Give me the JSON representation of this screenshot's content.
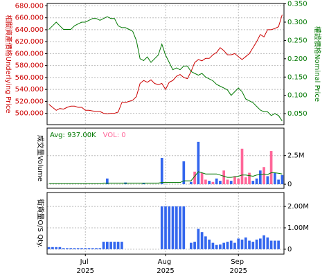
{
  "chart_data": [
    {
      "type": "line",
      "y_label": "相關資產價格Underlying Price",
      "y2_label": "權證價格Nominal Price",
      "ylim": [
        481,
        684
      ],
      "yticks": [
        {
          "value": 500,
          "label": "500.000"
        },
        {
          "value": 520,
          "label": "520.000"
        },
        {
          "value": 540,
          "label": "540.000"
        },
        {
          "value": 560,
          "label": "560.000"
        },
        {
          "value": 580,
          "label": "580.000"
        },
        {
          "value": 600,
          "label": "600.000"
        },
        {
          "value": 620,
          "label": "620.000"
        },
        {
          "value": 640,
          "label": "640.000"
        },
        {
          "value": 660,
          "label": "660.000"
        },
        {
          "value": 680,
          "label": "680.000"
        }
      ],
      "y2lim": [
        0.02,
        0.351
      ],
      "y2ticks": [
        {
          "value": 0.05,
          "label": "0.050"
        },
        {
          "value": 0.1,
          "label": "0.100"
        },
        {
          "value": 0.15,
          "label": "0.150"
        },
        {
          "value": 0.2,
          "label": "0.200"
        },
        {
          "value": 0.25,
          "label": "0.250"
        },
        {
          "value": 0.3,
          "label": "0.300"
        },
        {
          "value": 0.35,
          "label": "0.350"
        }
      ],
      "grid": true,
      "series": [
        {
          "color": "#cc0000",
          "axis": "y",
          "values": [
            515,
            510,
            505,
            508,
            507,
            510,
            512,
            512,
            510,
            510,
            505,
            505,
            504,
            503,
            503,
            500,
            499,
            500,
            500,
            502,
            518,
            518,
            520,
            522,
            528,
            550,
            555,
            552,
            556,
            550,
            548,
            550,
            540,
            552,
            555,
            562,
            565,
            560,
            558,
            570,
            585,
            590,
            588,
            592,
            592,
            598,
            602,
            610,
            605,
            598,
            598,
            600,
            595,
            590,
            595,
            600,
            610,
            620,
            632,
            628,
            640,
            640,
            642,
            645,
            665
          ]
        },
        {
          "color": "#007700",
          "axis": "y2",
          "values": [
            0.28,
            0.29,
            0.3,
            0.29,
            0.28,
            0.28,
            0.28,
            0.29,
            0.295,
            0.3,
            0.3,
            0.305,
            0.31,
            0.31,
            0.305,
            0.31,
            0.315,
            0.31,
            0.31,
            0.29,
            0.285,
            0.285,
            0.28,
            0.275,
            0.25,
            0.2,
            0.195,
            0.205,
            0.19,
            0.2,
            0.21,
            0.24,
            0.21,
            0.19,
            0.17,
            0.175,
            0.17,
            0.18,
            0.18,
            0.165,
            0.16,
            0.155,
            0.16,
            0.15,
            0.145,
            0.14,
            0.13,
            0.125,
            0.12,
            0.115,
            0.1,
            0.11,
            0.12,
            0.11,
            0.09,
            0.085,
            0.08,
            0.07,
            0.06,
            0.055,
            0.055,
            0.045,
            0.05,
            0.045,
            0.03
          ]
        }
      ]
    },
    {
      "type": "bar",
      "y_label": "成交量Volume",
      "ylim": [
        -360000,
        4900000
      ],
      "yticks": [
        0,
        {
          "value": 2500000,
          "label": "2.5M"
        }
      ],
      "grid": true,
      "series": [
        {
          "name": "VOL: 0",
          "color": "#ff6699",
          "type": "bar",
          "values": [
            0,
            0,
            0,
            0,
            0,
            0,
            0,
            0,
            0,
            0,
            0,
            0,
            0,
            0,
            0,
            0,
            500000,
            0,
            0,
            0,
            0,
            150000,
            0,
            0,
            0,
            0,
            100000,
            0,
            0,
            0,
            0,
            2300000,
            0,
            0,
            0,
            0,
            0,
            2000000,
            0,
            200000,
            1100000,
            3700000,
            1000000,
            400000,
            300000,
            200000,
            500000,
            300000,
            1200000,
            400000,
            300000,
            700000,
            500000,
            3100000,
            600000,
            1000000,
            300000,
            500000,
            1200000,
            1500000,
            700000,
            2900000,
            1000000,
            400000,
            800000
          ],
          "colors": [
            "#3366ee",
            "#3366ee",
            "#3366ee",
            "#3366ee",
            "#3366ee",
            "#3366ee",
            "#3366ee",
            "#3366ee",
            "#3366ee",
            "#3366ee",
            "#3366ee",
            "#3366ee",
            "#3366ee",
            "#3366ee",
            "#3366ee",
            "#3366ee",
            "#3366ee",
            "#3366ee",
            "#3366ee",
            "#3366ee",
            "#3366ee",
            "#3366ee",
            "#3366ee",
            "#3366ee",
            "#3366ee",
            "#3366ee",
            "#3366ee",
            "#3366ee",
            "#3366ee",
            "#3366ee",
            "#3366ee",
            "#3366ee",
            "#3366ee",
            "#3366ee",
            "#3366ee",
            "#3366ee",
            "#3366ee",
            "#3366ee",
            "#3366ee",
            "#3366ee",
            "#ff6699",
            "#3366ee",
            "#ff6699",
            "#ff6699",
            "#3366ee",
            "#ff6699",
            "#3366ee",
            "#3366ee",
            "#ff6699",
            "#ff6699",
            "#3366ee",
            "#ff6699",
            "#ff6699",
            "#ff6699",
            "#ff6699",
            "#ff6699",
            "#3366ee",
            "#3366ee",
            "#3366ee",
            "#ff6699",
            "#3366ee",
            "#ff6699",
            "#3366ee",
            "#3366ee",
            "#3366ee"
          ]
        },
        {
          "name": "Avg: 937.00K",
          "color": "#007700",
          "type": "line",
          "values": [
            80000,
            80000,
            80000,
            80000,
            80000,
            80000,
            80000,
            80000,
            80000,
            80000,
            80000,
            80000,
            80000,
            80000,
            80000,
            100000,
            100000,
            100000,
            100000,
            100000,
            100000,
            100000,
            100000,
            100000,
            100000,
            100000,
            100000,
            100000,
            100000,
            100000,
            100000,
            150000,
            150000,
            150000,
            150000,
            150000,
            150000,
            300000,
            300000,
            300000,
            700000,
            1100000,
            1000000,
            900000,
            900000,
            900000,
            900000,
            800000,
            700000,
            600000,
            600000,
            650000,
            700000,
            800000,
            800000,
            750000,
            700000,
            800000,
            850000,
            900000,
            850000,
            1000000,
            1000000,
            950000,
            900000
          ]
        }
      ]
    },
    {
      "type": "bar",
      "y_label": "街貨量O/S Qty.",
      "ylim": [
        -230000,
        2650000
      ],
      "yticks": [
        0,
        {
          "value": 1000000,
          "label": "1.00M"
        },
        {
          "value": 2000000,
          "label": "2.00M"
        }
      ],
      "grid": true,
      "x": [
        0,
        1,
        2,
        3,
        4,
        5,
        6,
        7,
        8,
        9,
        10,
        11,
        12,
        13,
        14,
        15,
        16,
        17,
        18,
        19,
        20,
        21,
        22,
        23,
        24,
        25,
        26,
        27,
        28,
        29,
        30,
        31,
        32,
        33,
        34,
        35,
        36,
        37,
        38,
        39,
        40,
        41,
        42,
        43,
        44,
        45,
        46,
        47,
        48,
        49,
        50,
        51,
        52,
        53,
        54,
        55,
        56,
        57,
        58,
        59,
        60,
        61,
        62,
        63,
        64
      ],
      "xlim": [
        -0.5,
        64.5
      ],
      "xticks": [
        {
          "value": 10,
          "label": "Jul 2025"
        },
        {
          "value": 32,
          "label": "Aug 2025"
        },
        {
          "value": 52,
          "label": "Sep 2025"
        }
      ],
      "series": [
        {
          "color": "#3366ee",
          "type": "bar",
          "values": [
            100000,
            100000,
            100000,
            100000,
            50000,
            50000,
            50000,
            50000,
            50000,
            50000,
            50000,
            50000,
            50000,
            50000,
            50000,
            350000,
            350000,
            350000,
            350000,
            350000,
            350000,
            0,
            0,
            0,
            0,
            0,
            0,
            0,
            0,
            0,
            0,
            2000000,
            2000000,
            2000000,
            2000000,
            2000000,
            2000000,
            2000000,
            0,
            300000,
            350000,
            950000,
            800000,
            600000,
            450000,
            300000,
            200000,
            220000,
            300000,
            350000,
            400000,
            300000,
            500000,
            450000,
            550000,
            400000,
            350000,
            450000,
            500000,
            650000,
            550000,
            400000,
            400000,
            400000,
            0
          ]
        }
      ]
    }
  ]
}
